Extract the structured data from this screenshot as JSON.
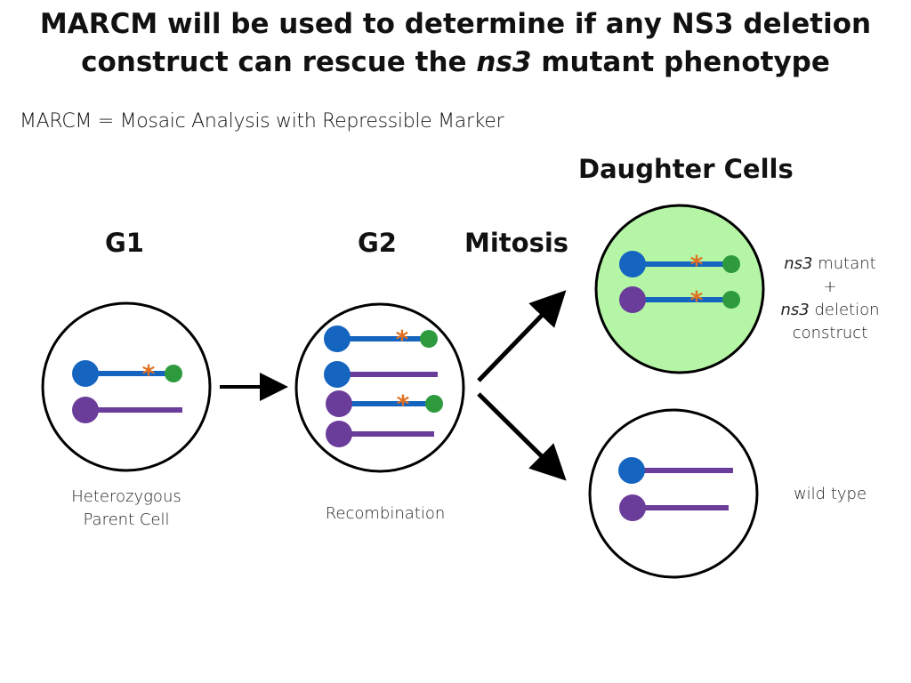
{
  "title": {
    "line1": "MARCM will be used to determine if any NS3 deletion",
    "line2_pre": "construct can rescue the ",
    "line2_em": "ns3",
    "line2_post": " mutant phenotype"
  },
  "subtitle": "MARCM = Mosaic Analysis with Repressible Marker",
  "headings": {
    "g1": "G1",
    "g2": "G2",
    "mitosis": "Mitosis",
    "daughter_cells": "Daughter Cells"
  },
  "labels": {
    "parent_line1": "Heterozygous",
    "parent_line2": "Parent Cell",
    "recombination": "Recombination",
    "mutant_em1": "ns3",
    "mutant_line1_rest": " mutant",
    "mutant_plus": "+",
    "mutant_em2": "ns3",
    "mutant_line3_rest": " deletion",
    "mutant_line4": "construct",
    "wild_type": "wild type"
  },
  "colors": {
    "blue": "#1565c0",
    "purple": "#6a3d9a",
    "green": "#2e9a3e",
    "star": "#e07020",
    "cell_fill_mutant": "#b5f5a6",
    "outline": "#000000"
  }
}
